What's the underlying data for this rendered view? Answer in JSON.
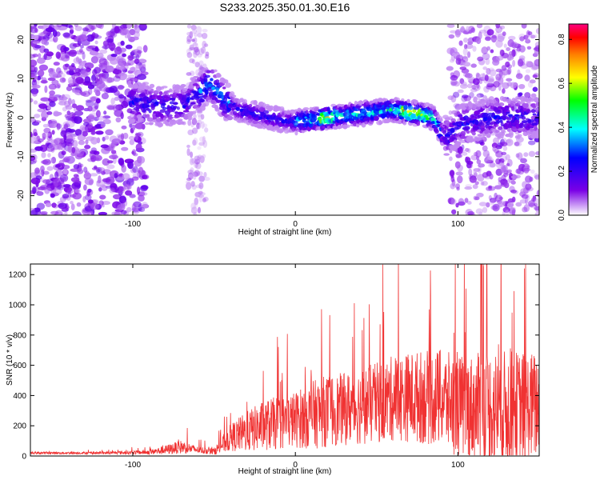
{
  "title": "S233.2025.350.01.30.E16",
  "chart_data": [
    {
      "type": "heatmap",
      "title": "",
      "xlabel": "Height of straight line (km)",
      "ylabel": "Frequency (Hz)",
      "xlim": [
        -163,
        150
      ],
      "ylim": [
        -25,
        24
      ],
      "xticks": [
        -100,
        0,
        100
      ],
      "yticks": [
        -20,
        -10,
        0,
        10,
        20
      ],
      "colorbar": {
        "label": "Normalized spectral amplitude",
        "range": [
          0.0,
          0.87
        ],
        "ticks": [
          0.0,
          0.2,
          0.4,
          0.6,
          0.8
        ],
        "colors": [
          "#ffffff",
          "#7a00e6",
          "#0000ff",
          "#00ffff",
          "#00ff00",
          "#ffff00",
          "#ff8000",
          "#ff0000",
          "#ff0080"
        ]
      },
      "ridge": {
        "x": [
          -100,
          -85,
          -70,
          -60,
          -52,
          -45,
          -35,
          -25,
          -15,
          -5,
          0,
          20,
          40,
          60,
          75,
          85,
          90,
          95,
          100,
          120,
          150
        ],
        "freq_hz": [
          4,
          3,
          3,
          6,
          9,
          5,
          2,
          1,
          0,
          -1,
          -1,
          0,
          1,
          2,
          1,
          0,
          -4,
          -5,
          -2,
          0,
          0
        ]
      },
      "noise_region_x": [
        -163,
        -100
      ],
      "noise_region_right_x": [
        95,
        150
      ]
    },
    {
      "type": "line",
      "title": "",
      "xlabel": "Height of straight line (km)",
      "ylabel": "SNR (10 * v/v)",
      "xlim": [
        -163,
        150
      ],
      "ylim": [
        0,
        1270
      ],
      "xticks": [
        -100,
        0,
        100
      ],
      "yticks": [
        0,
        200,
        400,
        600,
        800,
        1000,
        1200
      ],
      "color": "#f03232",
      "envelope": {
        "x": [
          -163,
          -120,
          -90,
          -80,
          -70,
          -60,
          -50,
          -40,
          -30,
          -20,
          -10,
          0,
          10,
          20,
          30,
          40,
          50,
          60,
          70,
          80,
          90,
          100,
          110,
          120,
          130,
          140,
          150
        ],
        "base": [
          20,
          20,
          25,
          40,
          60,
          40,
          30,
          120,
          160,
          200,
          220,
          240,
          270,
          300,
          310,
          330,
          350,
          380,
          390,
          390,
          380,
          330,
          320,
          320,
          310,
          320,
          330
        ],
        "spread": [
          10,
          10,
          20,
          40,
          60,
          30,
          30,
          120,
          180,
          220,
          240,
          250,
          300,
          320,
          320,
          340,
          360,
          380,
          400,
          420,
          430,
          450,
          470,
          520,
          520,
          500,
          480
        ]
      }
    }
  ]
}
